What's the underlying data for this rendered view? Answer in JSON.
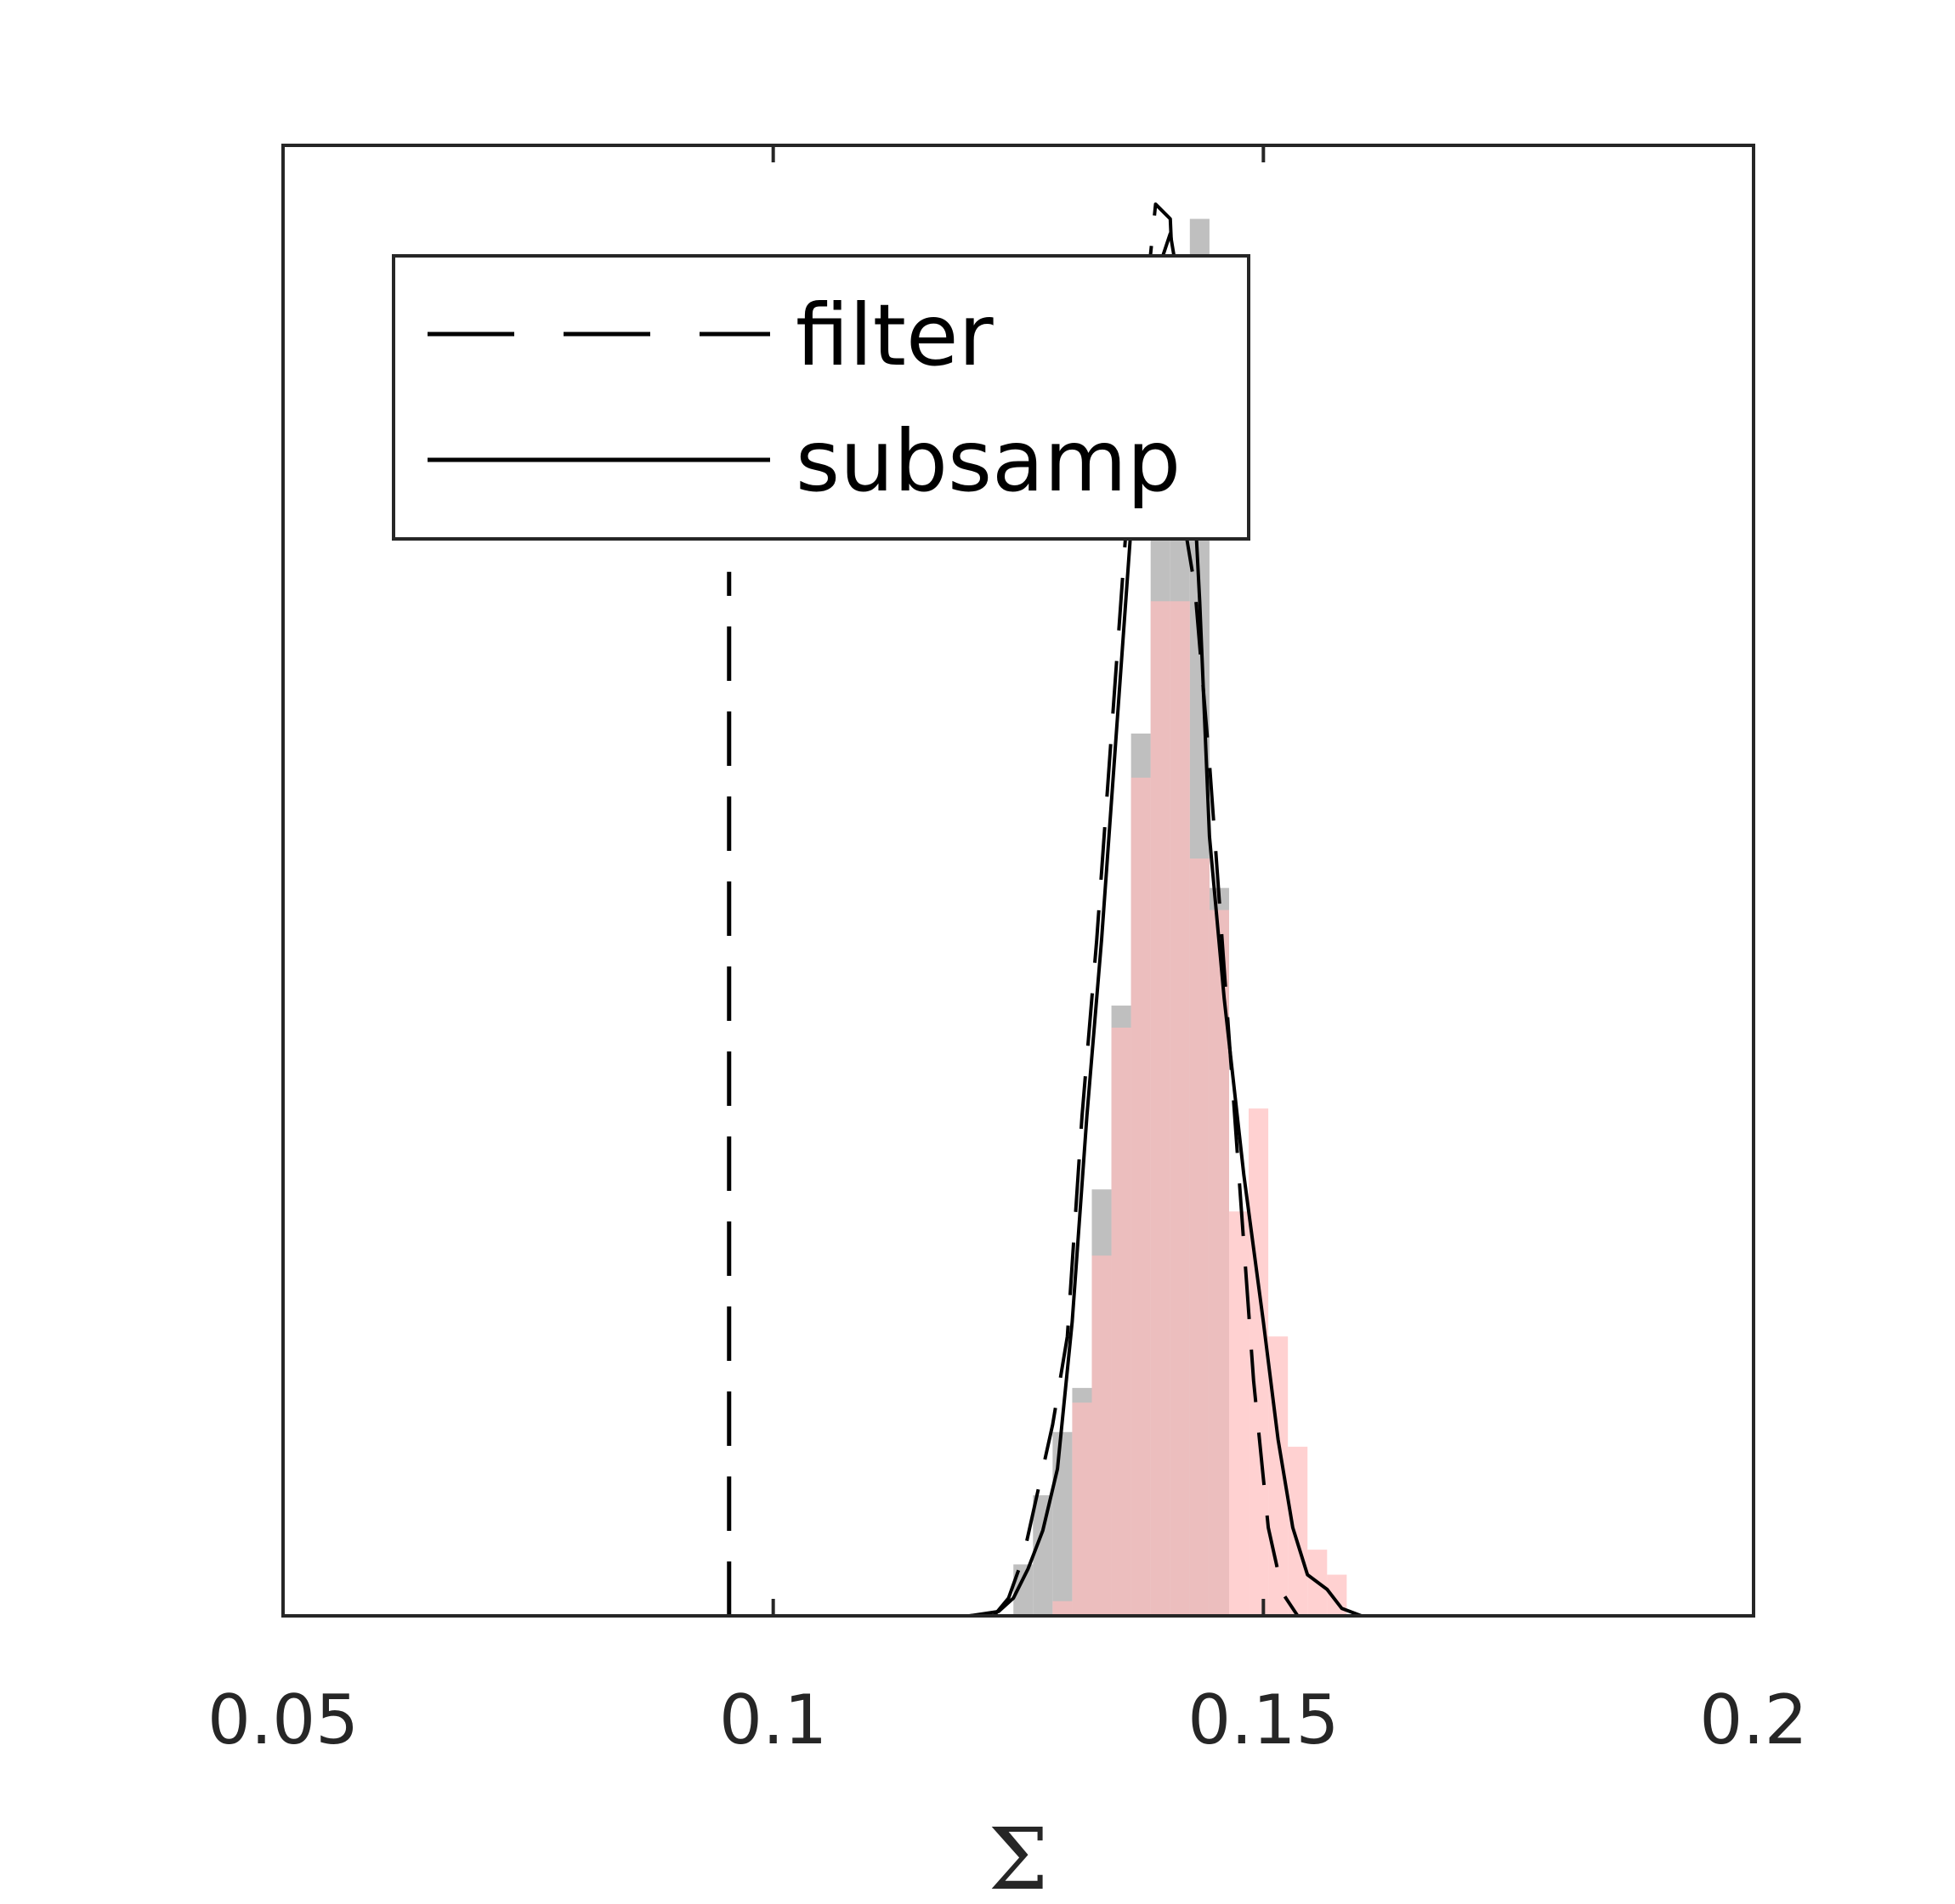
{
  "chart_data": {
    "type": "histogram",
    "xlabel": "Σ",
    "ylabel": "",
    "title": "",
    "xlim": [
      0.05,
      0.2
    ],
    "ylim": [
      0,
      1.0
    ],
    "xticks": [
      0.05,
      0.1,
      0.15,
      0.2
    ],
    "xtick_labels": [
      "0.05",
      "0.1",
      "0.15",
      "0.2"
    ],
    "grid": false,
    "legend": {
      "placement": "upper-left",
      "entries": [
        {
          "label": "filter",
          "style": "dashed"
        },
        {
          "label": "subsamp",
          "style": "solid"
        }
      ]
    },
    "reference_line": {
      "x": 0.0955,
      "style": "dashed",
      "ymax": 0.71
    },
    "histograms": [
      {
        "color": "#bfbfbf",
        "bin_edges": [
          0.1245,
          0.1265,
          0.1285,
          0.1305,
          0.1325,
          0.1345,
          0.1365,
          0.1385,
          0.1405,
          0.1425,
          0.1445,
          0.1465
        ],
        "counts": [
          0.035,
          0.082,
          0.125,
          0.155,
          0.29,
          0.415,
          0.6,
          0.77,
          0.87,
          0.95,
          0.495
        ]
      },
      {
        "color": "#ffbdbd",
        "bin_edges": [
          0.1285,
          0.1305,
          0.1325,
          0.1345,
          0.1365,
          0.1385,
          0.1405,
          0.1425,
          0.1445,
          0.1465,
          0.1485,
          0.1505,
          0.1525,
          0.1545,
          0.1565,
          0.1585
        ],
        "counts": [
          0.01,
          0.145,
          0.245,
          0.4,
          0.57,
          0.69,
          0.69,
          0.515,
          0.48,
          0.275,
          0.345,
          0.19,
          0.115,
          0.045,
          0.028
        ]
      }
    ],
    "curves": [
      {
        "name": "filter",
        "style": "dashed",
        "x": [
          0.1225,
          0.124,
          0.1255,
          0.127,
          0.1285,
          0.13,
          0.1315,
          0.133,
          0.1345,
          0.136,
          0.1375,
          0.139,
          0.1405,
          0.1415,
          0.142,
          0.143,
          0.1445,
          0.146,
          0.1475,
          0.149,
          0.1505,
          0.152,
          0.1535
        ],
        "y": [
          0.0,
          0.012,
          0.04,
          0.085,
          0.13,
          0.19,
          0.34,
          0.46,
          0.6,
          0.74,
          0.86,
          0.96,
          0.95,
          0.8,
          0.74,
          0.7,
          0.58,
          0.44,
          0.3,
          0.16,
          0.06,
          0.015,
          0.0
        ]
      },
      {
        "name": "subsamp",
        "style": "solid",
        "x": [
          0.12,
          0.123,
          0.1245,
          0.126,
          0.1275,
          0.129,
          0.1305,
          0.132,
          0.1335,
          0.135,
          0.1365,
          0.138,
          0.139,
          0.1405,
          0.1415,
          0.1425,
          0.1435,
          0.1445,
          0.146,
          0.148,
          0.15,
          0.1515,
          0.153,
          0.1545,
          0.1565,
          0.158,
          0.16
        ],
        "y": [
          0.0,
          0.003,
          0.012,
          0.032,
          0.058,
          0.1,
          0.2,
          0.34,
          0.46,
          0.6,
          0.74,
          0.85,
          0.91,
          0.94,
          0.9,
          0.82,
          0.69,
          0.53,
          0.42,
          0.3,
          0.2,
          0.12,
          0.06,
          0.028,
          0.018,
          0.005,
          0.0
        ]
      }
    ]
  }
}
